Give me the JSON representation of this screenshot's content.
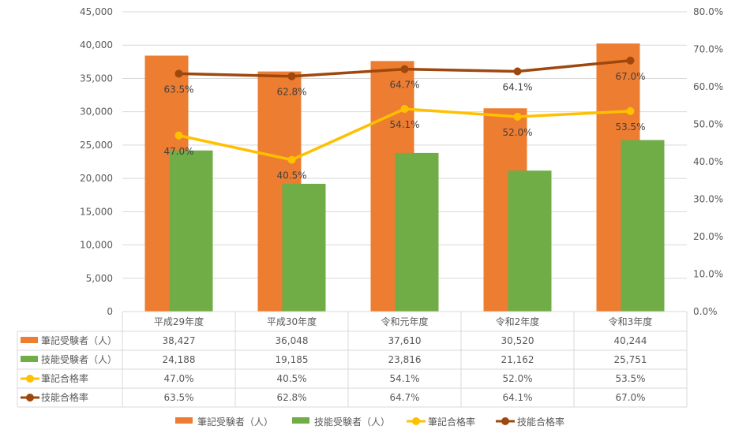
{
  "chart_data": {
    "type": "bar+line",
    "categories": [
      "平成29年度",
      "平成30年度",
      "令和元年度",
      "令和2年度",
      "令和3年度"
    ],
    "left_axis": {
      "min": 0,
      "max": 45000,
      "step": 5000,
      "ticks": [
        "0",
        "5,000",
        "10,000",
        "15,000",
        "20,000",
        "25,000",
        "30,000",
        "35,000",
        "40,000",
        "45,000"
      ]
    },
    "right_axis": {
      "min": 0,
      "max": 80,
      "step": 10,
      "ticks": [
        "0.0%",
        "10.0%",
        "20.0%",
        "30.0%",
        "40.0%",
        "50.0%",
        "60.0%",
        "70.0%",
        "80.0%"
      ]
    },
    "grid": true,
    "legend_position": "bottom",
    "series": [
      {
        "name": "筆記受験者（人）",
        "type": "bar",
        "axis": "left",
        "color": "#ED7D31",
        "values": [
          38427,
          36048,
          37610,
          30520,
          40244
        ],
        "labels": [
          "38,427",
          "36,048",
          "37,610",
          "30,520",
          "40,244"
        ]
      },
      {
        "name": "技能受験者（人）",
        "type": "bar",
        "axis": "left",
        "color": "#70AD47",
        "values": [
          24188,
          19185,
          23816,
          21162,
          25751
        ],
        "labels": [
          "24,188",
          "19,185",
          "23,816",
          "21,162",
          "25,751"
        ]
      },
      {
        "name": "筆記合格率",
        "type": "line",
        "axis": "right",
        "color": "#FFC000",
        "values": [
          47.0,
          40.5,
          54.1,
          52.0,
          53.5
        ],
        "labels": [
          "47.0%",
          "40.5%",
          "54.1%",
          "52.0%",
          "53.5%"
        ]
      },
      {
        "name": "技能合格率",
        "type": "line",
        "axis": "right",
        "color": "#9E480E",
        "values": [
          63.5,
          62.8,
          64.7,
          64.1,
          67.0
        ],
        "labels": [
          "63.5%",
          "62.8%",
          "64.7%",
          "64.1%",
          "67.0%"
        ]
      }
    ]
  }
}
